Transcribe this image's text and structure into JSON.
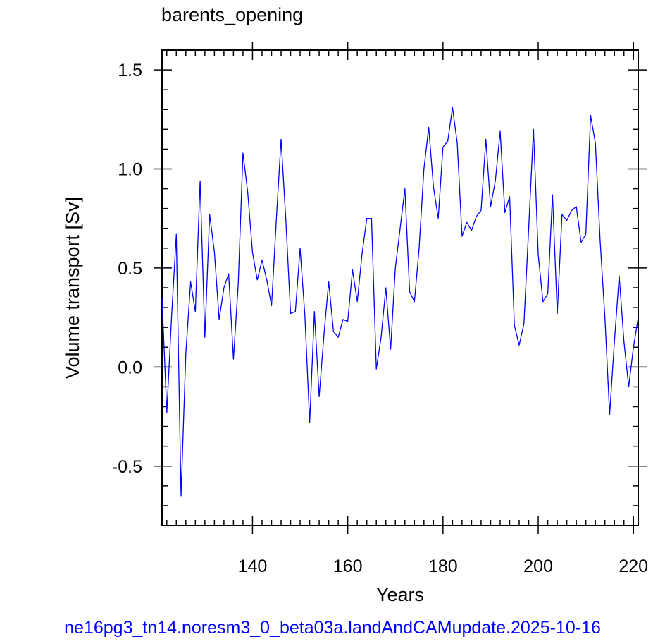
{
  "chart_data": {
    "type": "line",
    "title": "barents_opening",
    "xlabel": "Years",
    "ylabel": "Volume transport [Sv]",
    "footer": "ne16pg3_tn14.noresm3_0_beta03a.landAndCAMupdate.2025-10-16",
    "xlim": [
      121,
      221
    ],
    "ylim": [
      -0.8,
      1.6
    ],
    "xticks": [
      140,
      160,
      180,
      200,
      220
    ],
    "xtick_labels": [
      "140",
      "160",
      "180",
      "200",
      "220"
    ],
    "yticks": [
      -0.5,
      0.0,
      0.5,
      1.0,
      1.5
    ],
    "ytick_labels": [
      "-0.5",
      "0.0",
      "0.5",
      "1.0",
      "1.5"
    ],
    "grid": false,
    "line_color": "#0000ff",
    "series": [
      {
        "x": [
          121,
          122,
          123,
          124,
          125,
          126,
          127,
          128,
          129,
          130,
          131,
          132,
          133,
          134,
          135,
          136,
          137,
          138,
          139,
          140,
          141,
          142,
          143,
          144,
          145,
          146,
          147,
          148,
          149,
          150,
          151,
          152,
          153,
          154,
          155,
          156,
          157,
          158,
          159,
          160,
          161,
          162,
          163,
          164,
          165,
          166,
          167,
          168,
          169,
          170,
          171,
          172,
          173,
          174,
          175,
          176,
          177,
          178,
          179,
          180,
          181,
          182,
          183,
          184,
          185,
          186,
          187,
          188,
          189,
          190,
          191,
          192,
          193,
          194,
          195,
          196,
          197,
          198,
          199,
          200,
          201,
          202,
          203,
          204,
          205,
          206,
          207,
          208,
          209,
          210,
          211,
          212,
          213,
          214,
          215,
          216,
          217,
          218,
          219,
          220,
          221
        ],
        "values": [
          0.35,
          -0.23,
          0.25,
          0.67,
          -0.65,
          0.07,
          0.43,
          0.28,
          0.94,
          0.15,
          0.77,
          0.58,
          0.24,
          0.4,
          0.47,
          0.04,
          0.42,
          1.08,
          0.88,
          0.58,
          0.44,
          0.54,
          0.44,
          0.31,
          0.74,
          1.15,
          0.74,
          0.27,
          0.28,
          0.6,
          0.26,
          -0.28,
          0.28,
          -0.15,
          0.16,
          0.43,
          0.18,
          0.15,
          0.24,
          0.23,
          0.49,
          0.33,
          0.57,
          0.75,
          0.75,
          -0.01,
          0.15,
          0.4,
          0.09,
          0.5,
          0.7,
          0.9,
          0.38,
          0.33,
          0.6,
          1.0,
          1.21,
          0.91,
          0.75,
          1.11,
          1.14,
          1.31,
          1.13,
          0.66,
          0.73,
          0.69,
          0.76,
          0.79,
          1.15,
          0.81,
          0.94,
          1.19,
          0.78,
          0.86,
          0.21,
          0.11,
          0.22,
          0.7,
          1.2,
          0.57,
          0.33,
          0.37,
          0.87,
          0.27,
          0.77,
          0.74,
          0.79,
          0.81,
          0.63,
          0.67,
          1.27,
          1.13,
          0.64,
          0.25,
          -0.24,
          0.13,
          0.46,
          0.13,
          -0.1,
          0.1,
          0.25
        ]
      }
    ]
  }
}
